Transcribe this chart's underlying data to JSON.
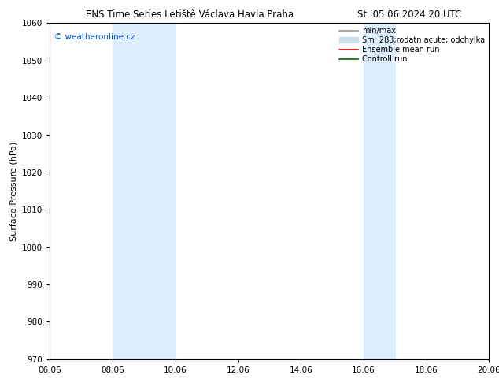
{
  "title_left": "ENS Time Series Letiště Václava Havla Praha",
  "title_right": "St. 05.06.2024 20 UTC",
  "ylabel": "Surface Pressure (hPa)",
  "ylim": [
    970,
    1060
  ],
  "yticks": [
    970,
    980,
    990,
    1000,
    1010,
    1020,
    1030,
    1040,
    1050,
    1060
  ],
  "xlim_start": 0,
  "xlim_end": 14,
  "xtick_labels": [
    "06.06",
    "08.06",
    "10.06",
    "12.06",
    "14.06",
    "16.06",
    "18.06",
    "20.06"
  ],
  "xtick_positions": [
    0,
    2,
    4,
    6,
    8,
    10,
    12,
    14
  ],
  "shaded_bands": [
    {
      "xstart": 2,
      "xend": 4,
      "color": "#ddeeff"
    },
    {
      "xstart": 10,
      "xend": 11,
      "color": "#ddeeff"
    }
  ],
  "watermark": "© weatheronline.cz",
  "watermark_color": "#0055cc",
  "legend_entries": [
    {
      "label": "min/max",
      "color": "#999999",
      "lw": 1.2,
      "type": "line"
    },
    {
      "label": "Sm  283;rodatn acute; odchylka",
      "color": "#cce0f0",
      "lw": 8,
      "type": "patch"
    },
    {
      "label": "Ensemble mean run",
      "color": "#dd0000",
      "lw": 1.2,
      "type": "line"
    },
    {
      "label": "Controll run",
      "color": "#006600",
      "lw": 1.2,
      "type": "line"
    }
  ],
  "bg_color": "#ffffff",
  "plot_bg_color": "#ffffff",
  "title_fontsize": 8.5,
  "tick_fontsize": 7.5,
  "ylabel_fontsize": 8,
  "legend_fontsize": 7,
  "watermark_fontsize": 7.5
}
